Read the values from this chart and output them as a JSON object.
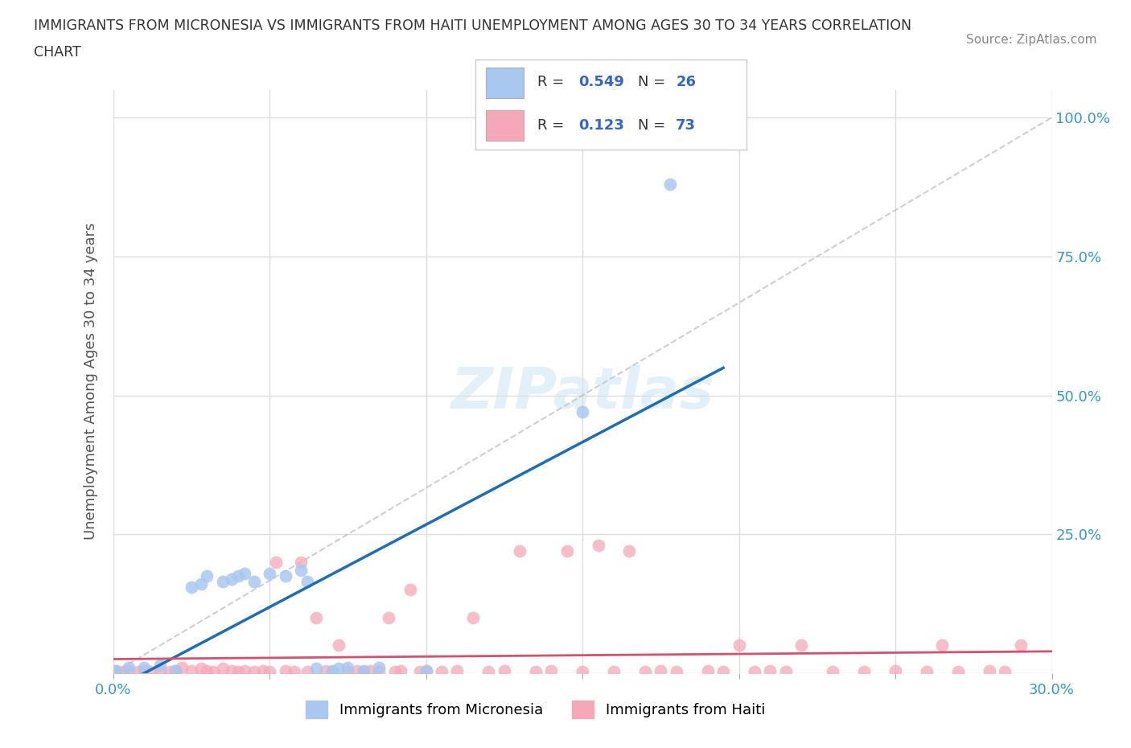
{
  "title_line1": "IMMIGRANTS FROM MICRONESIA VS IMMIGRANTS FROM HAITI UNEMPLOYMENT AMONG AGES 30 TO 34 YEARS CORRELATION",
  "title_line2": "CHART",
  "source": "Source: ZipAtlas.com",
  "ylabel": "Unemployment Among Ages 30 to 34 years",
  "xlim": [
    0.0,
    0.3
  ],
  "ylim": [
    0.0,
    1.05
  ],
  "micronesia_color": "#a8c8f0",
  "haiti_color": "#f5a8b8",
  "micronesia_line_color": "#1e6eb5",
  "haiti_line_color": "#d94f6e",
  "watermark_color": "#d0e8f5",
  "R_micronesia": 0.549,
  "N_micronesia": 26,
  "R_haiti": 0.123,
  "N_haiti": 73,
  "micronesia_x": [
    0.001,
    0.005,
    0.01,
    0.015,
    0.02,
    0.025,
    0.028,
    0.03,
    0.035,
    0.038,
    0.04,
    0.042,
    0.045,
    0.05,
    0.055,
    0.06,
    0.062,
    0.065,
    0.07,
    0.072,
    0.075,
    0.08,
    0.085,
    0.1,
    0.15,
    0.178
  ],
  "micronesia_y": [
    0.005,
    0.01,
    0.01,
    0.015,
    0.005,
    0.155,
    0.16,
    0.175,
    0.165,
    0.17,
    0.175,
    0.18,
    0.165,
    0.18,
    0.175,
    0.185,
    0.165,
    0.008,
    0.005,
    0.008,
    0.01,
    0.005,
    0.01,
    0.005,
    0.47,
    0.88
  ],
  "haiti_x": [
    0.001,
    0.003,
    0.005,
    0.008,
    0.01,
    0.012,
    0.015,
    0.018,
    0.02,
    0.022,
    0.025,
    0.028,
    0.03,
    0.032,
    0.035,
    0.038,
    0.04,
    0.042,
    0.045,
    0.048,
    0.05,
    0.052,
    0.055,
    0.058,
    0.06,
    0.062,
    0.065,
    0.068,
    0.07,
    0.072,
    0.075,
    0.078,
    0.08,
    0.082,
    0.085,
    0.088,
    0.09,
    0.092,
    0.095,
    0.098,
    0.1,
    0.105,
    0.11,
    0.115,
    0.12,
    0.125,
    0.13,
    0.135,
    0.14,
    0.145,
    0.15,
    0.155,
    0.16,
    0.165,
    0.17,
    0.175,
    0.18,
    0.19,
    0.195,
    0.2,
    0.205,
    0.21,
    0.215,
    0.22,
    0.23,
    0.24,
    0.25,
    0.26,
    0.265,
    0.27,
    0.28,
    0.285,
    0.29
  ],
  "haiti_y": [
    0.005,
    0.003,
    0.005,
    0.003,
    0.005,
    0.003,
    0.005,
    0.003,
    0.005,
    0.01,
    0.005,
    0.008,
    0.005,
    0.003,
    0.008,
    0.005,
    0.003,
    0.005,
    0.003,
    0.005,
    0.003,
    0.2,
    0.005,
    0.003,
    0.2,
    0.003,
    0.1,
    0.005,
    0.003,
    0.05,
    0.003,
    0.005,
    0.003,
    0.005,
    0.003,
    0.1,
    0.003,
    0.005,
    0.15,
    0.003,
    0.005,
    0.003,
    0.005,
    0.1,
    0.003,
    0.005,
    0.22,
    0.003,
    0.005,
    0.22,
    0.003,
    0.23,
    0.003,
    0.22,
    0.003,
    0.005,
    0.003,
    0.005,
    0.003,
    0.05,
    0.003,
    0.005,
    0.003,
    0.05,
    0.003,
    0.003,
    0.005,
    0.003,
    0.05,
    0.003,
    0.005,
    0.003,
    0.05
  ],
  "background_color": "#ffffff",
  "grid_color": "#dddddd",
  "title_color": "#333333",
  "legend_text_color": "#3366cc",
  "source_color": "#888888"
}
